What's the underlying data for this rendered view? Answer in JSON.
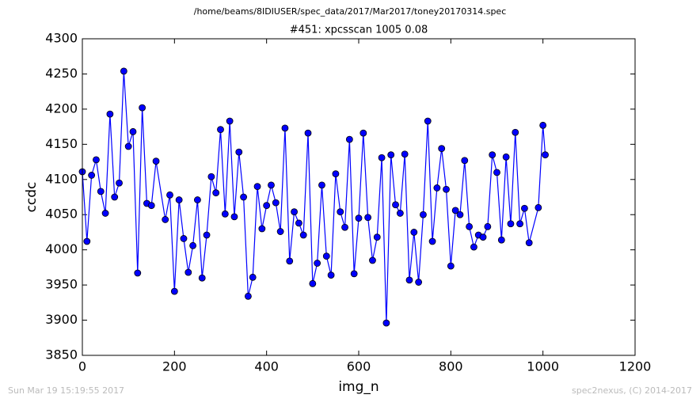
{
  "chart_data": {
    "type": "line",
    "suptitle": "/home/beams/8IDIUSER/spec_data/2017/Mar2017/toney20170314.spec",
    "title": "#451: xpcsscan 1005 0.08",
    "xlabel": "img_n",
    "ylabel": "ccdc",
    "footer_left": "Sun Mar 19 15:19:55 2017",
    "footer_right": "spec2nexus, (C) 2014-2017",
    "x": [
      0,
      10,
      20,
      30,
      40,
      50,
      60,
      70,
      80,
      90,
      100,
      110,
      120,
      130,
      140,
      150,
      160,
      180,
      190,
      200,
      210,
      220,
      230,
      240,
      250,
      260,
      270,
      280,
      290,
      300,
      310,
      320,
      330,
      340,
      350,
      360,
      370,
      380,
      390,
      400,
      410,
      420,
      430,
      440,
      450,
      460,
      470,
      480,
      490,
      500,
      510,
      520,
      530,
      540,
      550,
      560,
      570,
      580,
      590,
      600,
      610,
      620,
      630,
      640,
      650,
      660,
      670,
      680,
      690,
      700,
      710,
      720,
      730,
      740,
      750,
      760,
      770,
      780,
      790,
      800,
      810,
      820,
      830,
      840,
      850,
      860,
      870,
      880,
      890,
      900,
      910,
      920,
      930,
      940,
      950,
      960,
      970,
      990,
      1000,
      1005
    ],
    "series": [
      {
        "name": "ccdc",
        "color": "#0000ff",
        "marker_edge": "#000000",
        "values": [
          4111,
          4012,
          4106,
          4128,
          4083,
          4052,
          4193,
          4075,
          4095,
          4254,
          4147,
          4168,
          3967,
          4202,
          4066,
          4063,
          4126,
          4043,
          4078,
          3941,
          4071,
          4016,
          3968,
          4006,
          4071,
          3960,
          4021,
          4104,
          4081,
          4171,
          4051,
          4183,
          4047,
          4139,
          4075,
          3934,
          3961,
          4090,
          4030,
          4063,
          4092,
          4067,
          4026,
          4173,
          3984,
          4054,
          4038,
          4021,
          4166,
          3952,
          3981,
          4092,
          3991,
          3964,
          4108,
          4054,
          4032,
          4157,
          3966,
          4045,
          4166,
          4046,
          3985,
          4018,
          4131,
          3896,
          4135,
          4064,
          4052,
          4136,
          3957,
          4025,
          3954,
          4050,
          4183,
          4012,
          4088,
          4144,
          4086,
          3977,
          4056,
          4050,
          4127,
          4033,
          4004,
          4021,
          4018,
          4033,
          4135,
          4110,
          4014,
          4132,
          4037,
          4167,
          4037,
          4059,
          4010,
          4060,
          4177,
          4135
        ]
      }
    ],
    "xlim": [
      0,
      1200
    ],
    "xticks": [
      0,
      200,
      400,
      600,
      800,
      1000,
      1200
    ],
    "ylim": [
      3850,
      4300
    ],
    "yticks": [
      3850,
      3900,
      3950,
      4000,
      4050,
      4100,
      4150,
      4200,
      4250,
      4300
    ]
  }
}
